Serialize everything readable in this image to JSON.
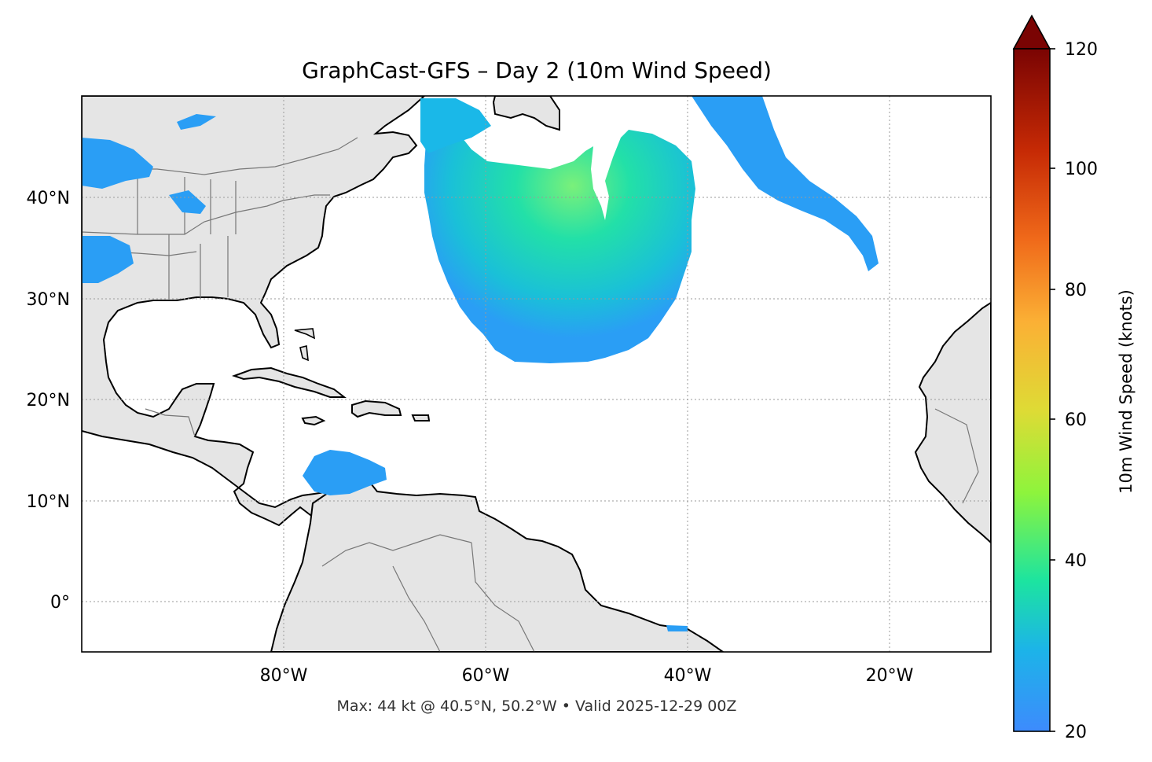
{
  "figure": {
    "title": "GraphCast-GFS – Day 2 (10m Wind Speed)",
    "footnote": "Max: 44 kt @ 40.5°N, 50.2°W • Valid 2025-12-29 00Z"
  },
  "map": {
    "extent_lon": [
      -100,
      -10
    ],
    "extent_lat": [
      -5,
      50
    ],
    "lat_ticks": [
      {
        "value": 40,
        "label": "40°N"
      },
      {
        "value": 30,
        "label": "30°N"
      },
      {
        "value": 20,
        "label": "20°N"
      },
      {
        "value": 10,
        "label": "10°N"
      },
      {
        "value": 0,
        "label": "0°"
      }
    ],
    "lon_ticks": [
      {
        "value": -80,
        "label": "80°W"
      },
      {
        "value": -60,
        "label": "60°W"
      },
      {
        "value": -40,
        "label": "40°W"
      },
      {
        "value": -20,
        "label": "20°W"
      }
    ],
    "gridlines": "dotted",
    "land_color": "#e5e5e5",
    "ocean_color": "#ffffff",
    "coastline_color": "#000000",
    "border_color": "#777777"
  },
  "colorbar": {
    "label": "10m Wind Speed (knots)",
    "range": [
      20,
      120
    ],
    "extend": "max",
    "ticks": [
      {
        "value": 20,
        "label": "20"
      },
      {
        "value": 40,
        "label": "40"
      },
      {
        "value": 60,
        "label": "60"
      },
      {
        "value": 80,
        "label": "80"
      },
      {
        "value": 100,
        "label": "100"
      },
      {
        "value": 120,
        "label": "120"
      }
    ],
    "colormap": [
      "#3d8bfd",
      "#1cc8d8",
      "#2ee88f",
      "#a4f23a",
      "#e8d83a",
      "#fba035",
      "#e4460e",
      "#a61b03",
      "#7a0403"
    ]
  }
}
